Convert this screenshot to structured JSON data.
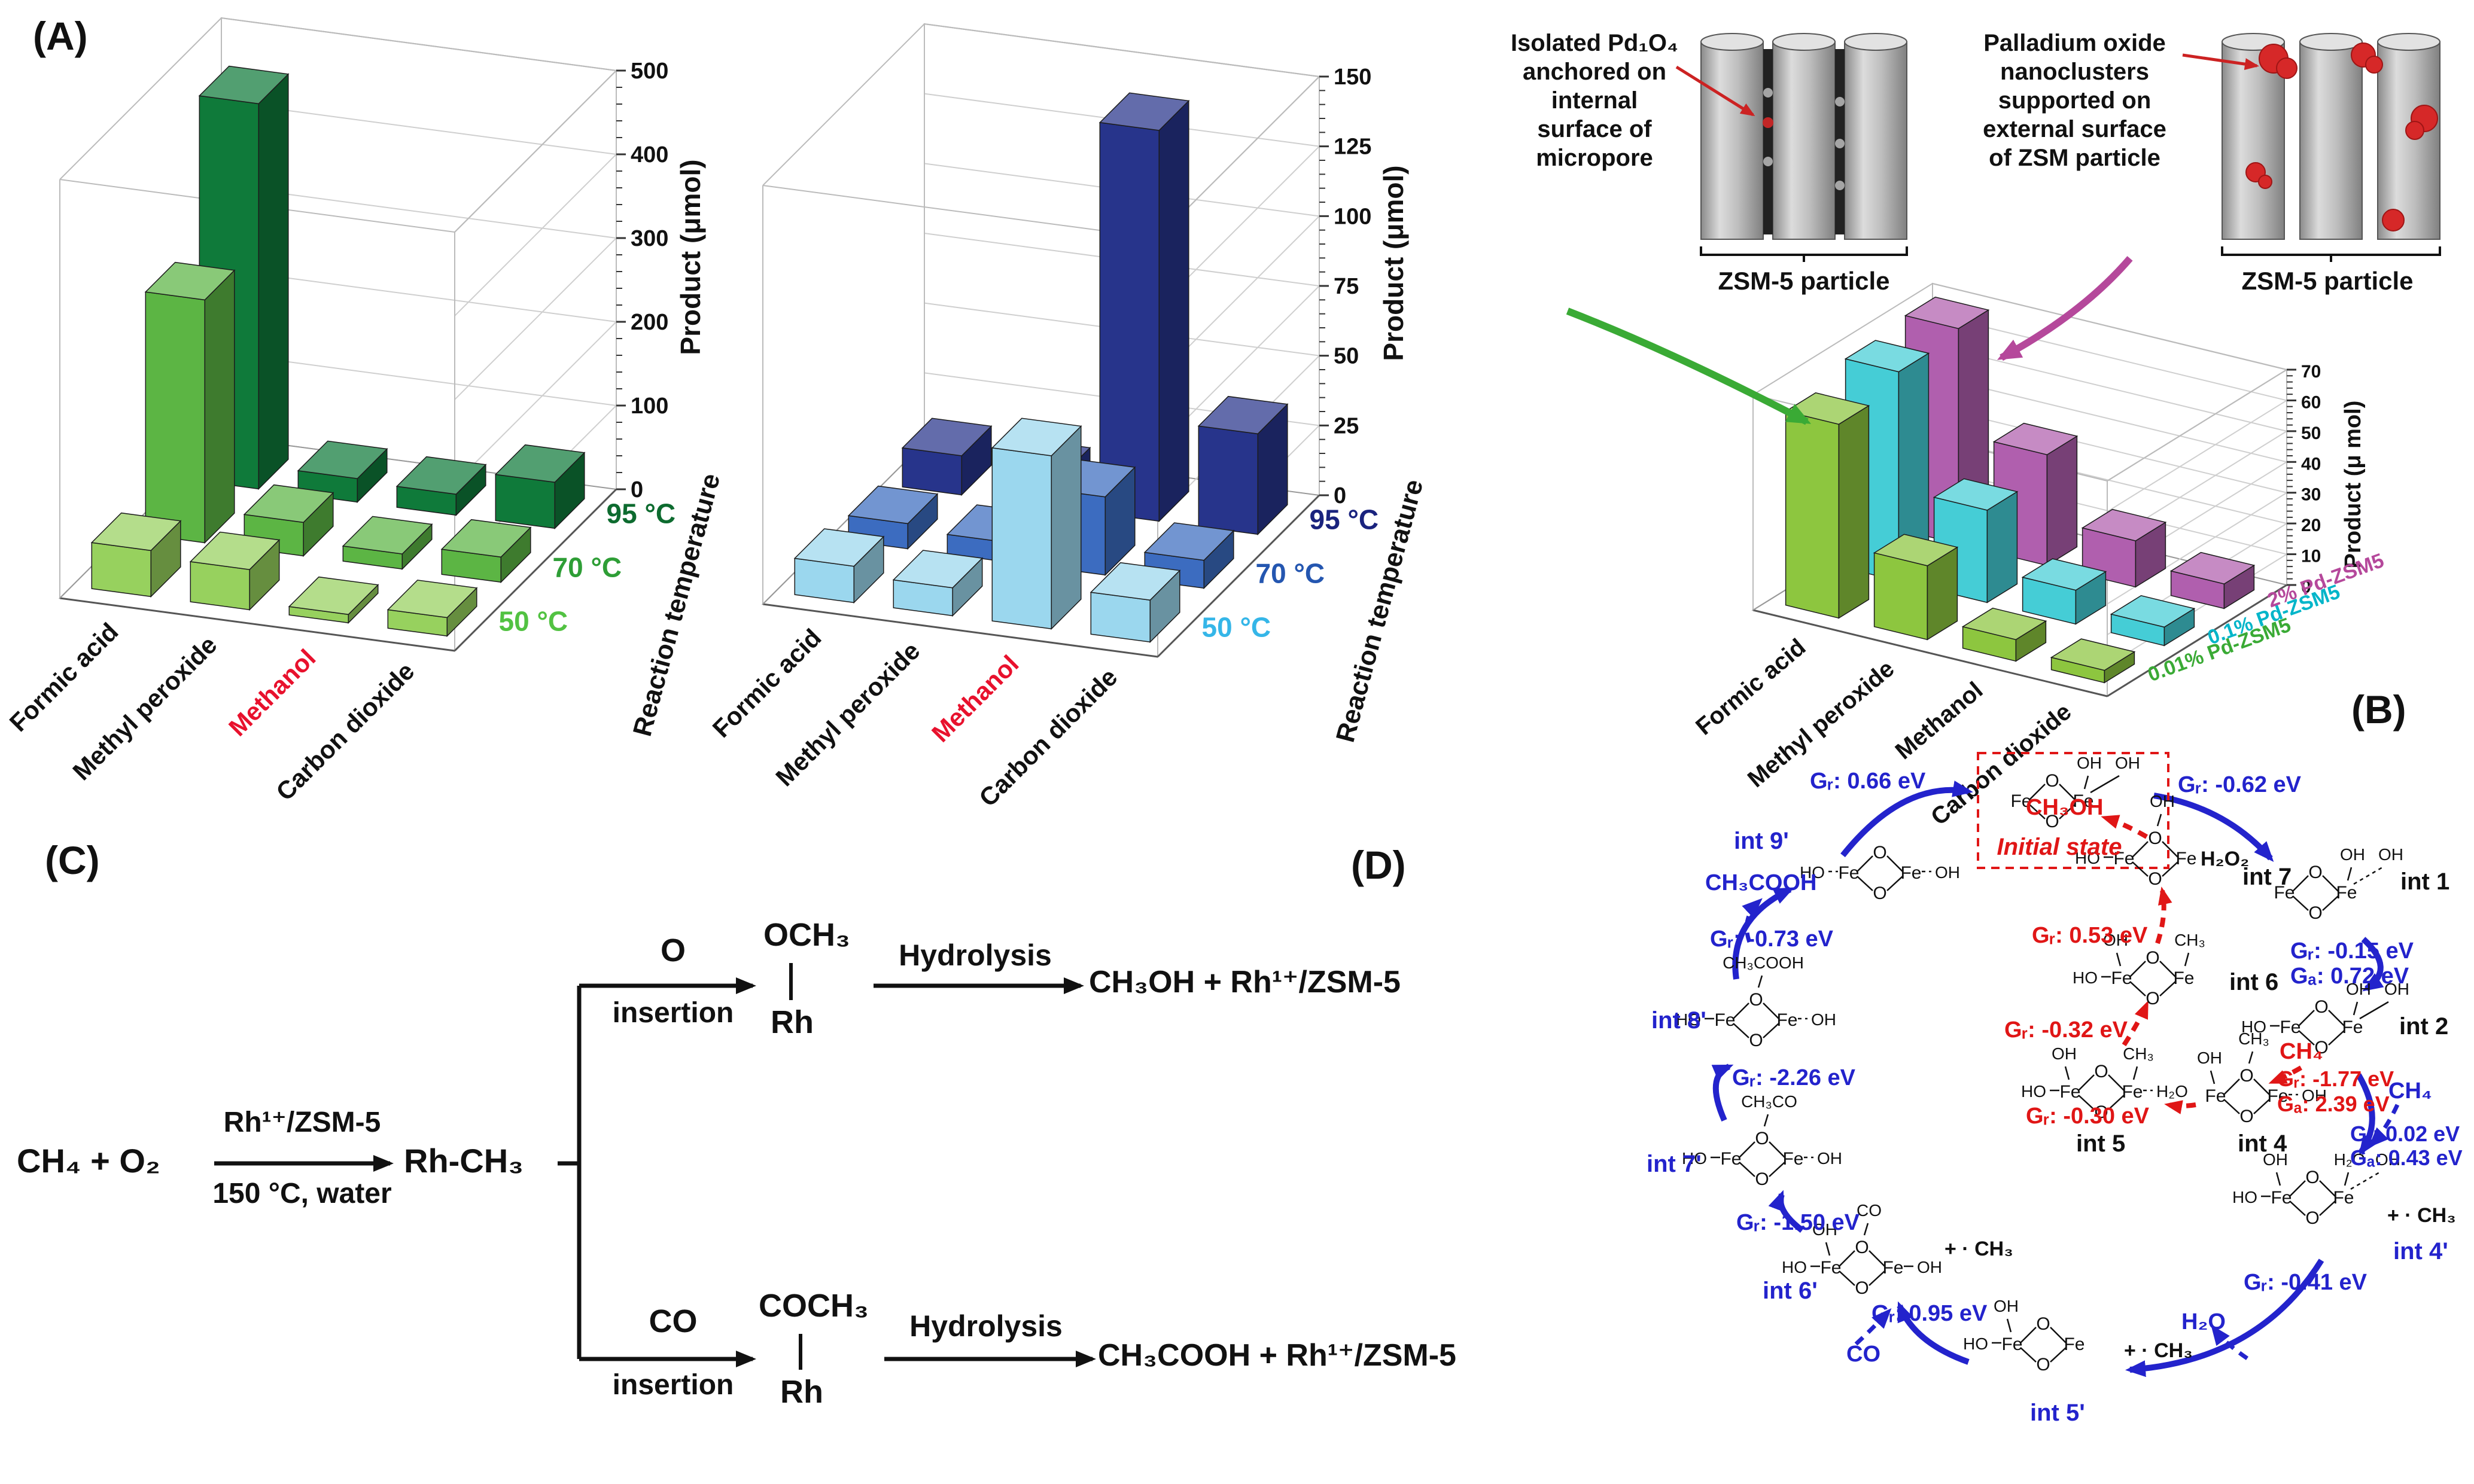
{
  "colors": {
    "blue": "#2323cc",
    "red": "#e01616",
    "green_arrow": "#3aaa35",
    "magenta": "#b5489b"
  },
  "panel_labels": {
    "a": "(A)",
    "b": "(B)",
    "c": "(C)",
    "d": "(D)"
  },
  "chart_data": [
    {
      "id": "c1",
      "type": "bar3d",
      "zlabel": "Product (μmol)",
      "depth_label": "Reaction temperature",
      "categories": [
        "Formic acid",
        "Methyl peroxide",
        "Methanol",
        "Carbon dioxide"
      ],
      "highlight_category": "Methanol",
      "highlight_color": "#e8112d",
      "zticks": [
        0,
        100,
        200,
        300,
        400,
        500
      ],
      "zmax": 500,
      "series": [
        {
          "name": "50 °C",
          "color": "#97d15e",
          "label_color": "#52c242",
          "values": [
            55,
            48,
            10,
            22
          ]
        },
        {
          "name": "70 °C",
          "color": "#5cb544",
          "label_color": "#2e9e36",
          "values": [
            290,
            40,
            18,
            30
          ]
        },
        {
          "name": "95 °C",
          "color": "#0f7a3a",
          "label_color": "#0d6b2f",
          "values": [
            460,
            28,
            25,
            55
          ]
        }
      ]
    },
    {
      "id": "c2",
      "type": "bar3d",
      "zlabel": "Product (μmol)",
      "depth_label": "Reaction temperature",
      "categories": [
        "Formic acid",
        "Methyl peroxide",
        "Methanol",
        "Carbon dioxide"
      ],
      "highlight_category": "Methanol",
      "highlight_color": "#e8112d",
      "zticks": [
        0,
        25,
        50,
        75,
        100,
        125,
        150
      ],
      "zmax": 150,
      "series": [
        {
          "name": "50 °C",
          "color": "#9bd7ee",
          "label_color": "#35b6e8",
          "values": [
            13,
            10,
            62,
            15
          ]
        },
        {
          "name": "70 °C",
          "color": "#3c6cc0",
          "label_color": "#2456b0",
          "values": [
            9,
            7,
            28,
            10
          ]
        },
        {
          "name": "95 °C",
          "color": "#27348b",
          "label_color": "#1a237e",
          "values": [
            14,
            11,
            140,
            36
          ]
        }
      ]
    },
    {
      "id": "c3",
      "type": "bar3d",
      "zlabel": "Product (μ mol)",
      "categories": [
        "Formic acid",
        "Methyl peroxide",
        "Methanol",
        "Carbon dioxide"
      ],
      "zticks": [
        0,
        10,
        20,
        30,
        40,
        50,
        60,
        70
      ],
      "zmax": 70,
      "series": [
        {
          "name": "0.01% Pd-ZSM5",
          "color": "#8dc63f",
          "label_color": "#3aaa35",
          "values": [
            63,
            24,
            7,
            4
          ]
        },
        {
          "name": "0.1% Pd-ZSM5",
          "color": "#45cdd6",
          "label_color": "#00b5c9",
          "values": [
            68,
            30,
            11,
            6
          ]
        },
        {
          "name": "2% Pd-ZSM5",
          "color": "#b05fae",
          "label_color": "#b5489b",
          "values": [
            70,
            36,
            15,
            8
          ]
        }
      ]
    }
  ],
  "panel_b": {
    "left_caption": "Isolated Pd₁O₄ anchored on internal surface of micropore",
    "right_caption": "Palladium oxide nanoclusters supported on external surface of ZSM particle",
    "left_particle_label": "ZSM-5 particle",
    "right_particle_label": "ZSM-5 particle"
  },
  "panel_c": {
    "reactants": "CH₄ + O₂",
    "cond_top": "Rh¹⁺/ZSM-5",
    "cond_bottom": "150 °C, water",
    "intermediate": "Rh-CH₃",
    "o_insertion_top": "O",
    "o_insertion_bottom": "insertion",
    "och3": "OCH₃",
    "rh_top": "Rh",
    "hydrolysis_top": "Hydrolysis",
    "product_top": "CH₃OH + Rh¹⁺/ZSM-5",
    "co_insertion_top": "CO",
    "co_insertion_bottom": "insertion",
    "coch3": "COCH₃",
    "rh_bottom": "Rh",
    "hydrolysis_bottom": "Hydrolysis",
    "product_bottom": "CH₃COOH + Rh¹⁺/ZSM-5"
  },
  "panel_d": {
    "core": {
      "metal": "Fe",
      "bridge": "O"
    },
    "labels": [
      {
        "id": "g66",
        "text": "Gᵣ: 0.66 eV",
        "color": "blue"
      },
      {
        "id": "gm62",
        "text": "Gᵣ: -0.62 eV",
        "color": "blue"
      },
      {
        "id": "int9p",
        "text": "int 9'",
        "color": "blue"
      },
      {
        "id": "ch3cooh_rel",
        "text": "CH₃COOH",
        "color": "blue"
      },
      {
        "id": "gm073",
        "text": "Gᵣ: -0.73 eV",
        "color": "blue"
      },
      {
        "id": "int8p",
        "text": "int 8'",
        "color": "blue"
      },
      {
        "id": "gm226",
        "text": "Gᵣ: -2.26 eV",
        "color": "blue"
      },
      {
        "id": "int7p",
        "text": "int 7'",
        "color": "blue"
      },
      {
        "id": "gm150",
        "text": "Gᵣ: -1.50 eV",
        "color": "blue"
      },
      {
        "id": "int6p",
        "text": "int 6'",
        "color": "blue"
      },
      {
        "id": "g095",
        "text": "Gᵣ: 0.95 eV",
        "color": "blue"
      },
      {
        "id": "co",
        "text": "CO",
        "color": "blue"
      },
      {
        "id": "int5p",
        "text": "int 5'",
        "color": "blue"
      },
      {
        "id": "h2o",
        "text": "H₂O",
        "color": "blue"
      },
      {
        "id": "gm041",
        "text": "Gᵣ: -0.41 eV",
        "color": "blue"
      },
      {
        "id": "int4p",
        "text": "int 4'",
        "color": "blue"
      },
      {
        "id": "g002",
        "text": "Gᵣ: 0.02 eV",
        "color": "blue"
      },
      {
        "id": "ga043",
        "text": "Gₐ: 0.43 eV",
        "color": "blue"
      },
      {
        "id": "ch4_blue",
        "text": "CH₄",
        "color": "blue"
      },
      {
        "id": "int2",
        "text": "int 2",
        "color": "black"
      },
      {
        "id": "gm015",
        "text": "Gᵣ: -0.15 eV",
        "color": "blue"
      },
      {
        "id": "ga072",
        "text": "Gₐ: 0.72 eV",
        "color": "blue"
      },
      {
        "id": "int1",
        "text": "int 1",
        "color": "black"
      },
      {
        "id": "h2o2",
        "text": "H₂O₂",
        "color": "black"
      },
      {
        "id": "initial",
        "text": "Initial state",
        "color": "red",
        "italic": true
      },
      {
        "id": "ch3oh",
        "text": "CH₃OH",
        "color": "red"
      },
      {
        "id": "g053",
        "text": "Gᵣ: 0.53 eV",
        "color": "red"
      },
      {
        "id": "int7",
        "text": "int 7",
        "color": "black"
      },
      {
        "id": "gm032",
        "text": "Gᵣ: -0.32 eV",
        "color": "red"
      },
      {
        "id": "int6",
        "text": "int 6",
        "color": "black"
      },
      {
        "id": "gm030",
        "text": "Gᵣ: -0.30 eV",
        "color": "red"
      },
      {
        "id": "int5",
        "text": "int 5",
        "color": "black"
      },
      {
        "id": "int4",
        "text": "int 4",
        "color": "black"
      },
      {
        "id": "ch4_red",
        "text": "CH₄",
        "color": "red"
      },
      {
        "id": "gm177",
        "text": "Gᵣ: -1.77 eV",
        "color": "red"
      },
      {
        "id": "ga239",
        "text": "Gₐ: 2.39 eV",
        "color": "red"
      },
      {
        "id": "mch3_4p",
        "text": "+ · CH₃",
        "color": "black"
      },
      {
        "id": "mch3_5p",
        "text": "+ · CH₃",
        "color": "black"
      },
      {
        "id": "mch3_6p",
        "text": "+ · CH₃",
        "color": "black"
      }
    ],
    "structures": [
      {
        "id": "s_init",
        "ligands": [
          {
            "slot": "TR",
            "text": "OH"
          },
          {
            "slot": "TR2",
            "text": "OH"
          }
        ]
      },
      {
        "id": "s_9p",
        "ligands": [
          {
            "slot": "L",
            "text": "HO",
            "dashed": true
          },
          {
            "slot": "R",
            "text": "OH",
            "dashed": true
          }
        ]
      },
      {
        "id": "s_1",
        "ligands": [
          {
            "slot": "TR",
            "text": "OH"
          },
          {
            "slot": "TR2",
            "text": "OH",
            "dashed": true
          }
        ]
      },
      {
        "id": "s_2",
        "ligands": [
          {
            "slot": "L",
            "text": "HO"
          },
          {
            "slot": "TR",
            "text": "OH"
          },
          {
            "slot": "TR2",
            "text": "OH"
          }
        ]
      },
      {
        "id": "s_4p",
        "ligands": [
          {
            "slot": "L",
            "text": "HO"
          },
          {
            "slot": "TL",
            "text": "OH"
          },
          {
            "slot": "TR",
            "text": "H₂O"
          },
          {
            "slot": "TR2",
            "text": "OH",
            "dashed": true
          }
        ]
      },
      {
        "id": "s_5p",
        "ligands": [
          {
            "slot": "L",
            "text": "HO"
          },
          {
            "slot": "TL",
            "text": "OH"
          }
        ]
      },
      {
        "id": "s_6p",
        "ligands": [
          {
            "slot": "TC",
            "text": "CO"
          },
          {
            "slot": "TL",
            "text": "OH"
          },
          {
            "slot": "L",
            "text": "HO"
          },
          {
            "slot": "R",
            "text": "OH"
          }
        ]
      },
      {
        "id": "s_7p",
        "ligands": [
          {
            "slot": "TC",
            "text": "CH₃CO"
          },
          {
            "slot": "L",
            "text": "HO"
          },
          {
            "slot": "R",
            "text": "OH",
            "dashed": true
          }
        ]
      },
      {
        "id": "s_8p",
        "ligands": [
          {
            "slot": "TC",
            "text": "CH₃COOH"
          },
          {
            "slot": "L",
            "text": "HO"
          },
          {
            "slot": "R",
            "text": "OH",
            "dashed": true
          }
        ]
      },
      {
        "id": "s_7",
        "ligands": [
          {
            "slot": "TC",
            "text": "OH"
          },
          {
            "slot": "L",
            "text": "HO"
          }
        ]
      },
      {
        "id": "s_6",
        "ligands": [
          {
            "slot": "TL",
            "text": "OH"
          },
          {
            "slot": "TR",
            "text": "CH₃"
          },
          {
            "slot": "L",
            "text": "HO"
          }
        ]
      },
      {
        "id": "s_5",
        "ligands": [
          {
            "slot": "TL",
            "text": "OH"
          },
          {
            "slot": "TR",
            "text": "CH₃"
          },
          {
            "slot": "R",
            "text": "H₂O",
            "dashed": true
          },
          {
            "slot": "L",
            "text": "HO"
          }
        ]
      },
      {
        "id": "s_4",
        "ligands": [
          {
            "slot": "TL",
            "text": "OH"
          },
          {
            "slot": "TC",
            "text": "CH₃"
          },
          {
            "slot": "R",
            "text": "OH",
            "dashed": true
          }
        ]
      }
    ]
  }
}
